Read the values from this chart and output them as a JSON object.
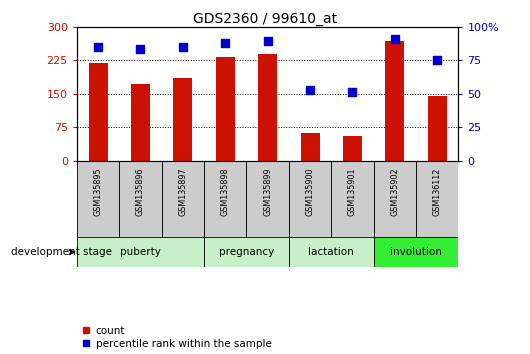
{
  "title": "GDS2360 / 99610_at",
  "samples": [
    "GSM135895",
    "GSM135896",
    "GSM135897",
    "GSM135898",
    "GSM135899",
    "GSM135900",
    "GSM135901",
    "GSM135902",
    "GSM136112"
  ],
  "counts": [
    218,
    172,
    185,
    232,
    238,
    63,
    57,
    268,
    145
  ],
  "percentile_ranks": [
    85,
    83,
    85,
    88,
    89,
    53,
    51,
    91,
    75
  ],
  "stage_defs": [
    {
      "label": "puberty",
      "start": 0,
      "end": 3,
      "color": "#c8f0c8"
    },
    {
      "label": "pregnancy",
      "start": 3,
      "end": 5,
      "color": "#c8f0c8"
    },
    {
      "label": "lactation",
      "start": 5,
      "end": 7,
      "color": "#c8f0c8"
    },
    {
      "label": "involution",
      "start": 7,
      "end": 9,
      "color": "#33ee33"
    }
  ],
  "left_ylim": [
    0,
    300
  ],
  "right_ylim": [
    0,
    100
  ],
  "left_yticks": [
    0,
    75,
    150,
    225,
    300
  ],
  "right_yticks": [
    0,
    25,
    50,
    75,
    100
  ],
  "bar_color": "#cc1100",
  "dot_color": "#0000cc",
  "sample_box_color": "#cccccc",
  "plot_bg_color": "#ffffff",
  "fig_bg_color": "#ffffff",
  "legend_count_label": "count",
  "legend_pct_label": "percentile rank within the sample",
  "dev_stage_label": "development stage",
  "bar_width": 0.45,
  "dot_size": 28
}
